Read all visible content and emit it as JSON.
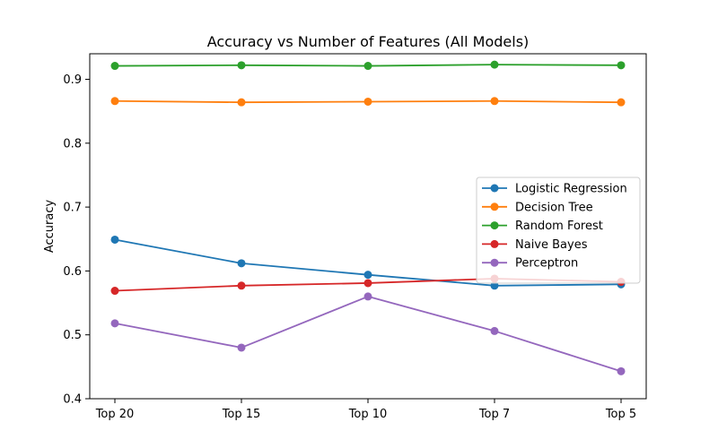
{
  "chart_data": {
    "type": "line",
    "title": "Accuracy vs Number of Features (All Models)",
    "xlabel": "",
    "ylabel": "Accuracy",
    "categories": [
      "Top 20",
      "Top 15",
      "Top 10",
      "Top 7",
      "Top 5"
    ],
    "ylim": [
      0.4,
      0.94
    ],
    "yticks": [
      0.4,
      0.5,
      0.6,
      0.7,
      0.8,
      0.9
    ],
    "ytick_labels": [
      "0.4",
      "0.5",
      "0.6",
      "0.7",
      "0.8",
      "0.9"
    ],
    "grid": false,
    "legend_position": "center-right",
    "series": [
      {
        "name": "Logistic Regression",
        "color": "#1f77b4",
        "values": [
          0.649,
          0.612,
          0.594,
          0.577,
          0.579
        ]
      },
      {
        "name": "Decision Tree",
        "color": "#ff7f0e",
        "values": [
          0.866,
          0.864,
          0.865,
          0.866,
          0.864
        ]
      },
      {
        "name": "Random Forest",
        "color": "#2ca02c",
        "values": [
          0.921,
          0.922,
          0.921,
          0.923,
          0.922
        ]
      },
      {
        "name": "Naive Bayes",
        "color": "#d62728",
        "values": [
          0.569,
          0.577,
          0.581,
          0.588,
          0.583
        ]
      },
      {
        "name": "Perceptron",
        "color": "#9467bd",
        "values": [
          0.518,
          0.48,
          0.56,
          0.506,
          0.443
        ]
      }
    ]
  }
}
